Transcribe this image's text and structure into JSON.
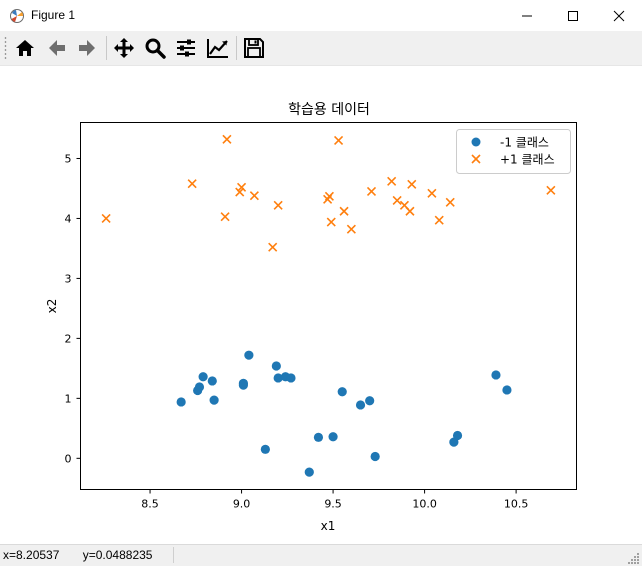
{
  "window": {
    "title": "Figure 1"
  },
  "toolbar": {
    "items": [
      {
        "name": "home-icon"
      },
      {
        "name": "back-icon"
      },
      {
        "name": "forward-icon"
      },
      {
        "name": "pan-icon"
      },
      {
        "name": "zoom-icon"
      },
      {
        "name": "subplots-icon"
      },
      {
        "name": "edit-curves-icon"
      },
      {
        "name": "save-icon"
      }
    ]
  },
  "status": {
    "x_label": "x=8.20537",
    "y_label": "y=0.0488235"
  },
  "chart_data": {
    "type": "scatter",
    "title": "학습용 데이터",
    "xlabel": "x1",
    "ylabel": "x2",
    "xlim": [
      8.12,
      10.83
    ],
    "ylim": [
      -0.52,
      5.6
    ],
    "xticks": [
      8.5,
      9.0,
      9.5,
      10.0,
      10.5
    ],
    "xtick_labels": [
      "8.5",
      "9.0",
      "9.5",
      "10.0",
      "10.5"
    ],
    "yticks": [
      0,
      1,
      2,
      3,
      4,
      5
    ],
    "ytick_labels": [
      "0",
      "1",
      "2",
      "3",
      "4",
      "5"
    ],
    "legend_position": "top-right",
    "grid": false,
    "series": [
      {
        "name": "-1 클래스",
        "marker": "circle",
        "color": "#1f77b4",
        "points": [
          [
            8.67,
            0.94
          ],
          [
            8.76,
            1.13
          ],
          [
            8.77,
            1.19
          ],
          [
            8.79,
            1.36
          ],
          [
            8.84,
            1.29
          ],
          [
            8.85,
            0.97
          ],
          [
            9.01,
            1.25
          ],
          [
            9.01,
            1.22
          ],
          [
            9.04,
            1.72
          ],
          [
            9.13,
            0.15
          ],
          [
            9.19,
            1.54
          ],
          [
            9.2,
            1.34
          ],
          [
            9.24,
            1.36
          ],
          [
            9.27,
            1.34
          ],
          [
            9.37,
            -0.23
          ],
          [
            9.42,
            0.35
          ],
          [
            9.5,
            0.36
          ],
          [
            9.55,
            1.11
          ],
          [
            9.65,
            0.89
          ],
          [
            9.7,
            0.96
          ],
          [
            9.73,
            0.03
          ],
          [
            10.16,
            0.27
          ],
          [
            10.18,
            0.38
          ],
          [
            10.39,
            1.39
          ],
          [
            10.45,
            1.14
          ]
        ]
      },
      {
        "name": "+1 클래스",
        "marker": "x",
        "color": "#ff7f0e",
        "points": [
          [
            8.26,
            4.0
          ],
          [
            8.73,
            4.58
          ],
          [
            8.91,
            4.03
          ],
          [
            8.92,
            5.32
          ],
          [
            8.99,
            4.44
          ],
          [
            9.0,
            4.52
          ],
          [
            9.07,
            4.38
          ],
          [
            9.17,
            3.52
          ],
          [
            9.2,
            4.22
          ],
          [
            9.47,
            4.32
          ],
          [
            9.48,
            4.37
          ],
          [
            9.49,
            3.94
          ],
          [
            9.53,
            5.3
          ],
          [
            9.56,
            4.12
          ],
          [
            9.6,
            3.82
          ],
          [
            9.71,
            4.45
          ],
          [
            9.82,
            4.62
          ],
          [
            9.85,
            4.3
          ],
          [
            9.89,
            4.22
          ],
          [
            9.92,
            4.12
          ],
          [
            9.93,
            4.57
          ],
          [
            10.04,
            4.42
          ],
          [
            10.08,
            3.97
          ],
          [
            10.14,
            4.27
          ],
          [
            10.69,
            4.47
          ]
        ]
      }
    ]
  }
}
